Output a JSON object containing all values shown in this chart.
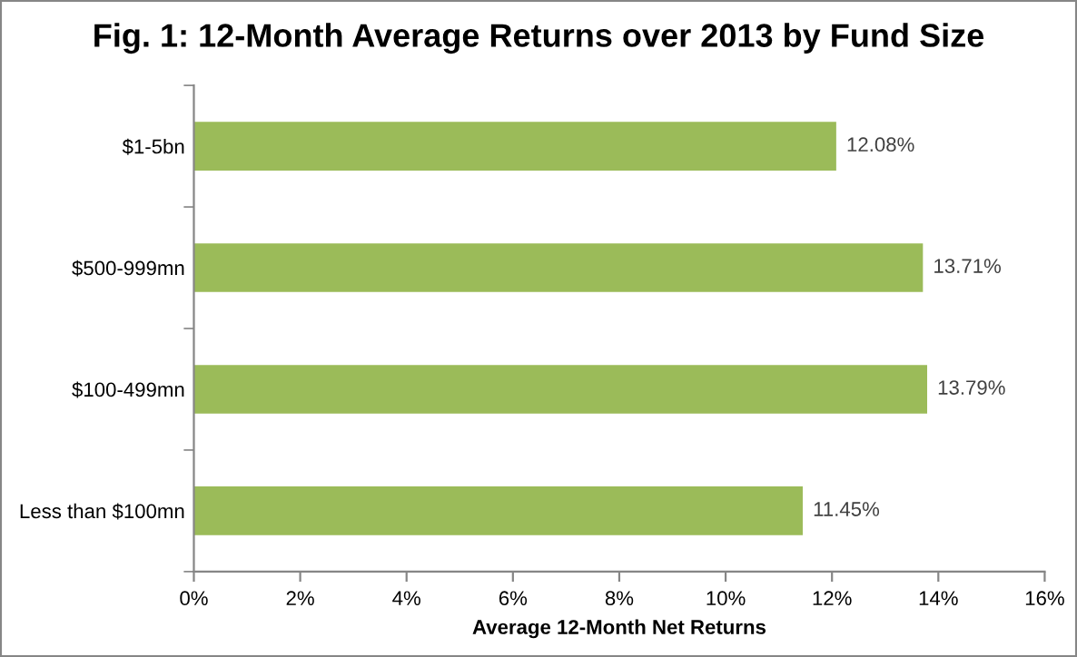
{
  "chart_data": {
    "type": "bar",
    "orientation": "horizontal",
    "title": "Fig. 1: 12-Month Average Returns over 2013 by Fund Size",
    "xlabel": "Average 12-Month Net Returns",
    "categories": [
      "$1-5bn",
      "$500-999mn",
      "$100-499mn",
      "Less than $100mn"
    ],
    "values": [
      12.08,
      13.71,
      13.79,
      11.45
    ],
    "value_labels": [
      "12.08%",
      "13.71%",
      "13.79%",
      "11.45%"
    ],
    "color": "#9bbb59",
    "xlim": [
      0,
      16
    ],
    "xticks": [
      {
        "value": 0,
        "label": "0%"
      },
      {
        "value": 2,
        "label": "2%"
      },
      {
        "value": 4,
        "label": "4%"
      },
      {
        "value": 6,
        "label": "6%"
      },
      {
        "value": 8,
        "label": "8%"
      },
      {
        "value": 10,
        "label": "10%"
      },
      {
        "value": 12,
        "label": "12%"
      },
      {
        "value": 14,
        "label": "14%"
      },
      {
        "value": 16,
        "label": "16%"
      }
    ],
    "grid": false,
    "legend": false
  }
}
